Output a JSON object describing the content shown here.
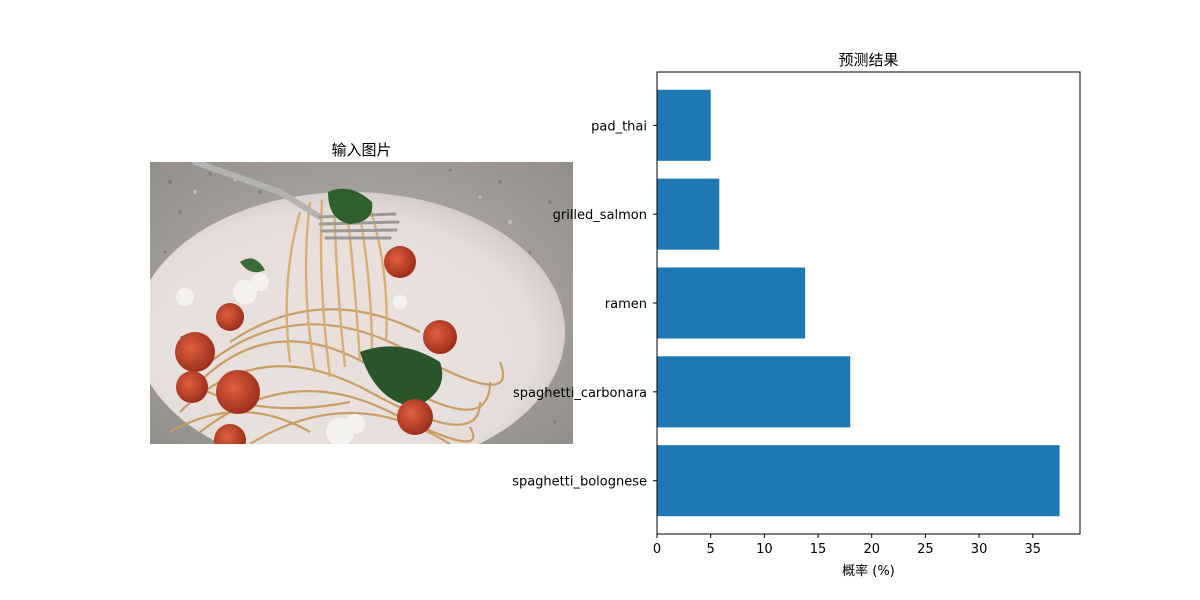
{
  "image_panel": {
    "title": "输入图片",
    "photo_icon": "spaghetti-plate-photo"
  },
  "chart_data": {
    "type": "bar",
    "orientation": "horizontal",
    "title": "预测结果",
    "xlabel": "概率 (%)",
    "ylabel": "",
    "categories": [
      "spaghetti_bolognese",
      "spaghetti_carbonara",
      "ramen",
      "grilled_salmon",
      "pad_thai"
    ],
    "values": [
      37.5,
      18.0,
      13.8,
      5.8,
      5.0
    ],
    "xlim": [
      0,
      39.4
    ],
    "xticks": [
      0,
      5,
      10,
      15,
      20,
      25,
      30,
      35
    ],
    "grid": false,
    "legend": "none",
    "bar_color": "#1f77b4"
  }
}
